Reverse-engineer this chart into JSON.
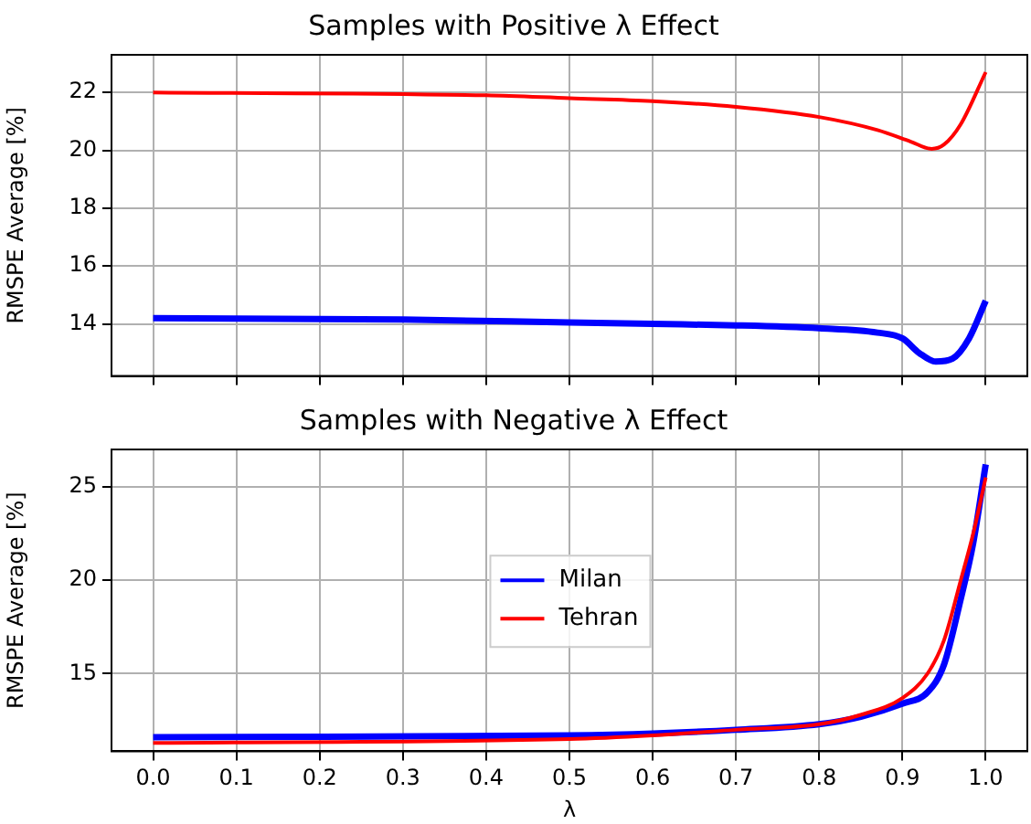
{
  "chart_data": [
    {
      "type": "line",
      "title": "Samples with Positive λ Effect",
      "ylabel": "RMSPE Average [%]",
      "xlim": [
        -0.05,
        1.05
      ],
      "xticks": [
        0,
        0.1,
        0.2,
        0.3,
        0.4,
        0.5,
        0.6,
        0.7,
        0.8,
        0.9,
        1
      ],
      "ylim": [
        12.2,
        23.3
      ],
      "yticks": [
        14,
        16,
        18,
        20,
        22
      ],
      "tick_labels": "y",
      "grid": true,
      "legend": false,
      "marker": "none",
      "line_style": "solid",
      "series": [
        {
          "color": "#0000ff",
          "x": [
            0,
            0.3,
            0.5,
            0.6,
            0.7,
            0.8,
            0.87,
            0.9,
            0.92,
            0.94,
            0.96,
            0.98,
            1.0
          ],
          "values": [
            14.2,
            14.15,
            14.05,
            14.0,
            13.95,
            13.85,
            13.7,
            13.5,
            13.0,
            12.7,
            12.8,
            13.5,
            14.8
          ]
        },
        {
          "color": "#ff0000",
          "x": [
            0,
            0.4,
            0.5,
            0.6,
            0.7,
            0.8,
            0.87,
            0.91,
            0.935,
            0.95,
            0.97,
            1.0
          ],
          "values": [
            22.0,
            21.9,
            21.8,
            21.7,
            21.5,
            21.15,
            20.7,
            20.3,
            20.05,
            20.2,
            20.9,
            22.7
          ]
        }
      ]
    },
    {
      "type": "line",
      "title": "Samples with Negative λ Effect",
      "xlabel": "λ",
      "ylabel": "RMSPE Average [%]",
      "xlim": [
        -0.05,
        1.05
      ],
      "xticks": [
        {
          "value": 0,
          "label": "0.0"
        },
        {
          "value": 0.1,
          "label": "0.1"
        },
        {
          "value": 0.2,
          "label": "0.2"
        },
        {
          "value": 0.3,
          "label": "0.3"
        },
        {
          "value": 0.4,
          "label": "0.4"
        },
        {
          "value": 0.5,
          "label": "0.5"
        },
        {
          "value": 0.6,
          "label": "0.6"
        },
        {
          "value": 0.7,
          "label": "0.7"
        },
        {
          "value": 0.8,
          "label": "0.8"
        },
        {
          "value": 0.9,
          "label": "0.9"
        },
        {
          "value": 1,
          "label": "1.0"
        }
      ],
      "ylim": [
        10.85,
        27.0
      ],
      "yticks": [
        15,
        20,
        25
      ],
      "grid": true,
      "legend": "center",
      "marker": "none",
      "line_style": "solid",
      "series": [
        {
          "name": "Milan",
          "color": "#0000ff",
          "x": [
            0,
            0.5,
            0.6,
            0.7,
            0.8,
            0.85,
            0.9,
            0.93,
            0.95,
            0.97,
            0.985,
            1.0
          ],
          "values": [
            11.6,
            11.7,
            11.8,
            12.0,
            12.3,
            12.7,
            13.4,
            14.0,
            15.5,
            19,
            22,
            26.2
          ]
        },
        {
          "name": "Tehran",
          "color": "#ff0000",
          "x": [
            0,
            0.5,
            0.6,
            0.7,
            0.8,
            0.85,
            0.9,
            0.93,
            0.95,
            0.97,
            0.985,
            1.0
          ],
          "values": [
            11.3,
            11.5,
            11.7,
            12.0,
            12.3,
            12.8,
            13.7,
            15.0,
            16.8,
            20,
            22.5,
            25.5
          ]
        }
      ]
    }
  ]
}
